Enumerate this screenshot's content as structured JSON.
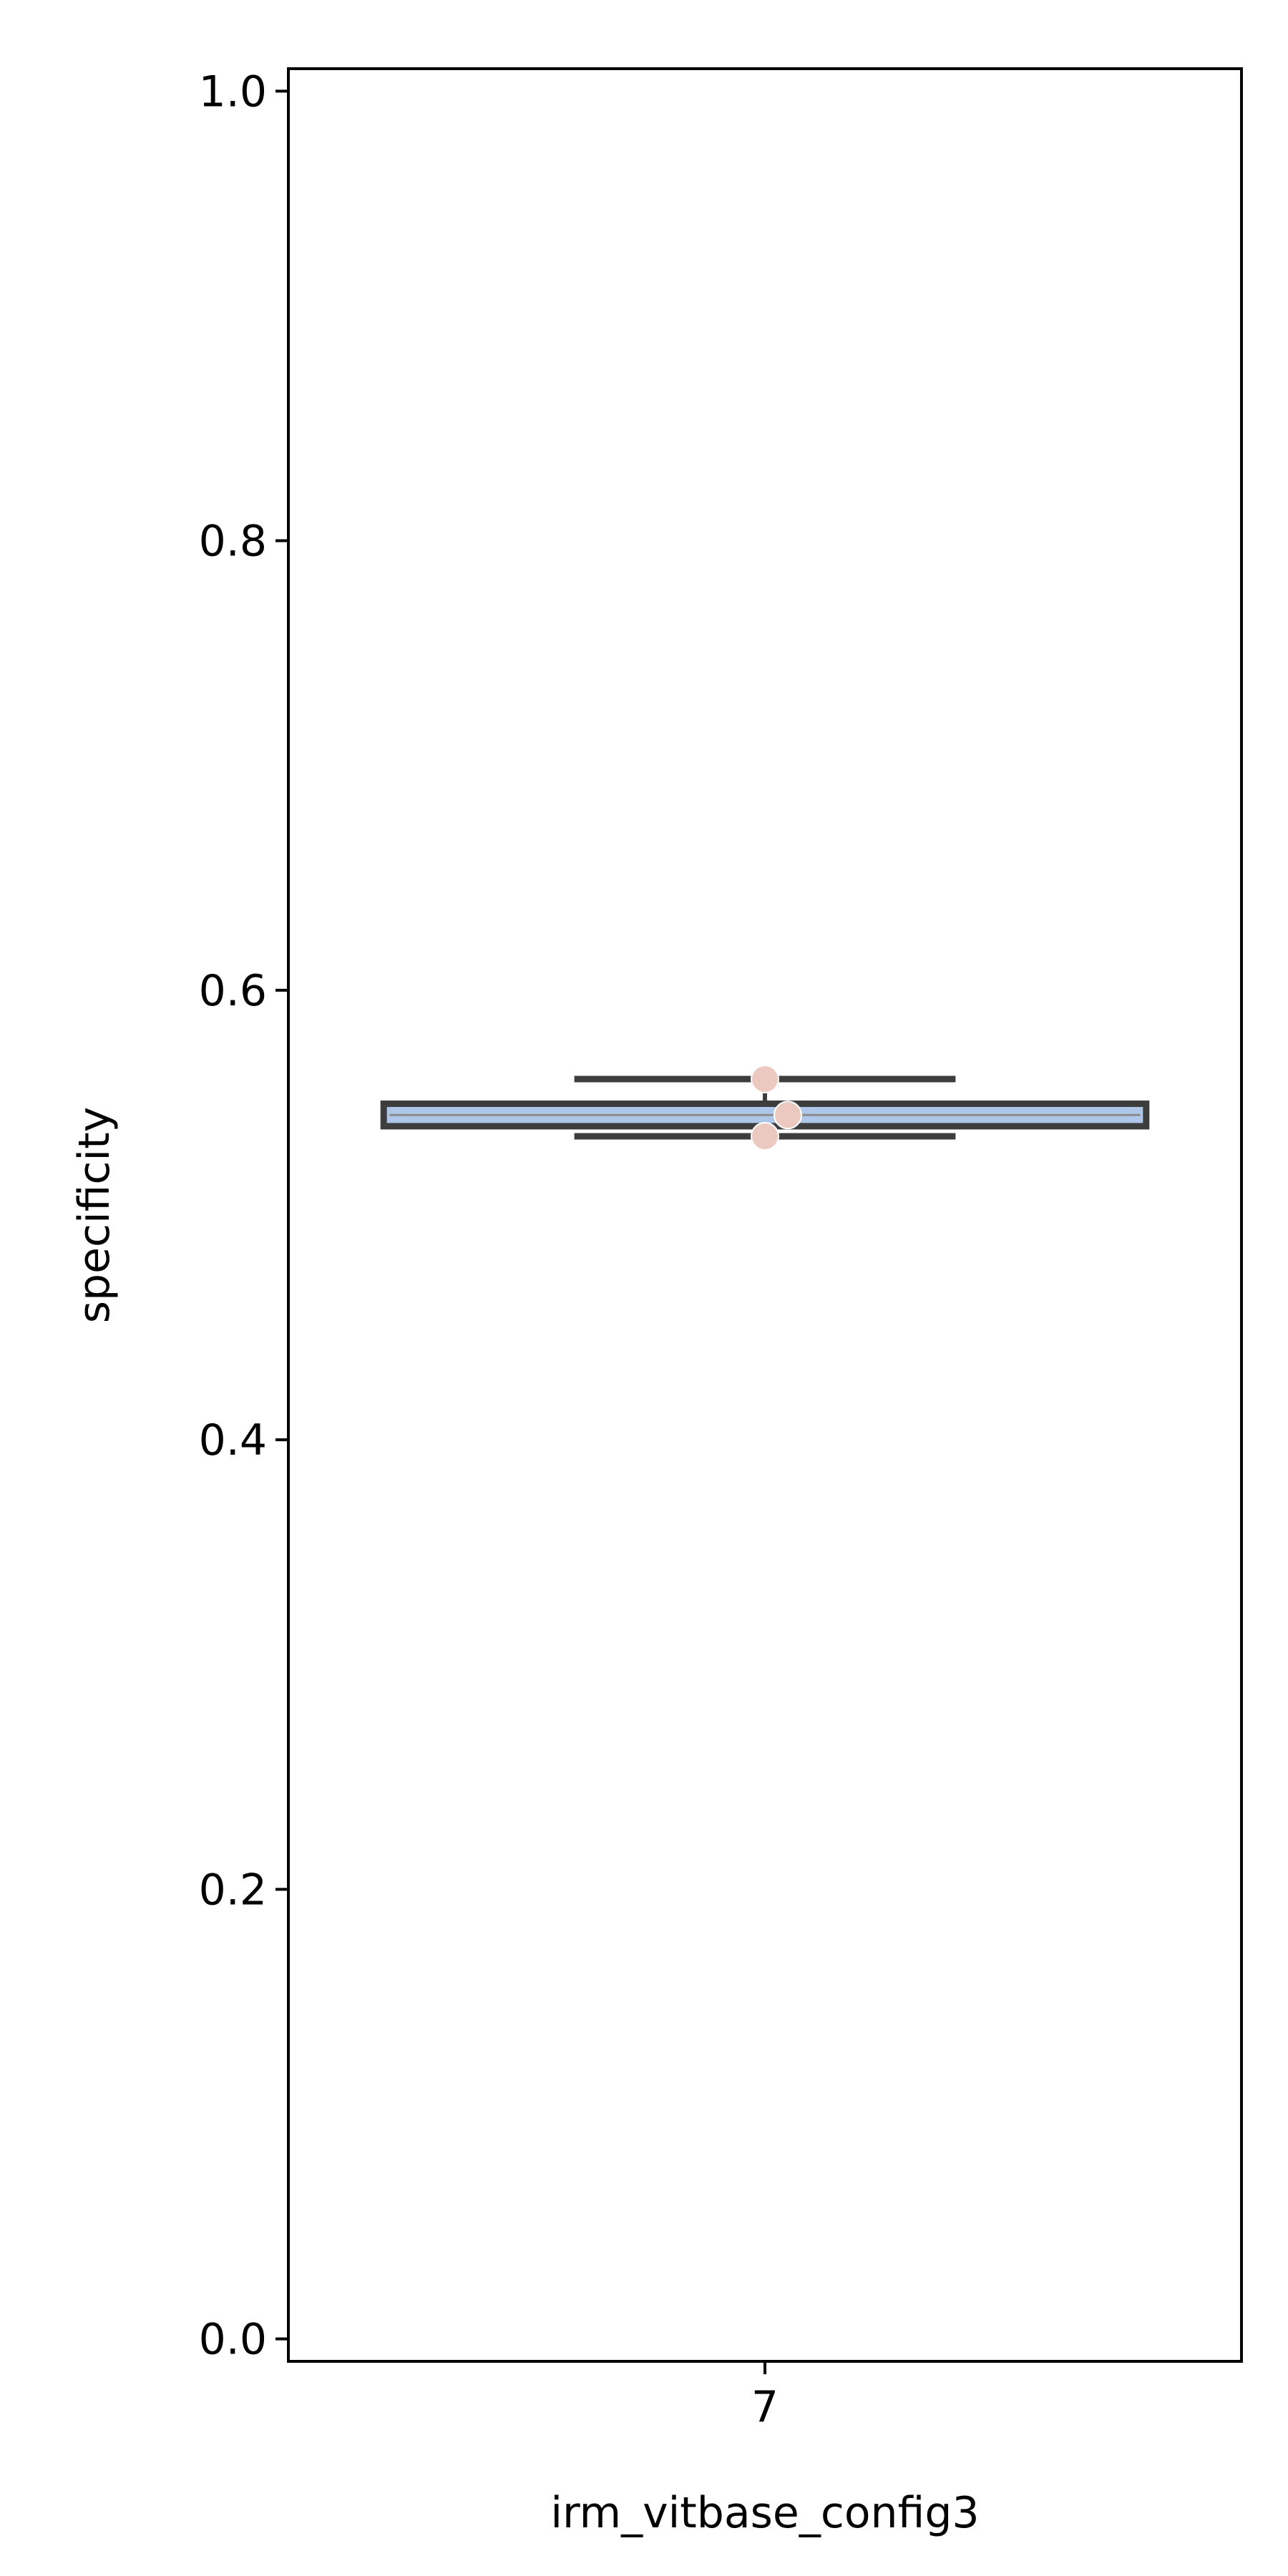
{
  "chart_data": {
    "type": "box",
    "categories": [
      "7"
    ],
    "xlabel": "irm_vitbase_config3",
    "ylabel": "specificity",
    "ylim": [
      -0.01,
      1.01
    ],
    "yticks": [
      0.0,
      0.2,
      0.4,
      0.6,
      0.8,
      1.0
    ],
    "ytick_labels": [
      "0.0",
      "0.2",
      "0.4",
      "0.6",
      "0.8",
      "1.0"
    ],
    "boxes": [
      {
        "category": "7",
        "whisker_low": 0.535,
        "q1": 0.5395,
        "median": 0.5445,
        "q3": 0.5495,
        "whisker_high": 0.5605,
        "mean": 0.5465
      }
    ],
    "points": [
      {
        "category": "7",
        "value": 0.5605
      },
      {
        "category": "7",
        "value": 0.5445
      },
      {
        "category": "7",
        "value": 0.535
      }
    ],
    "colors": {
      "box_fill": "#aec7e8",
      "box_edge": "#3d3d3d",
      "points": "#ecc9c0",
      "axes": "#000000"
    },
    "grid": false
  }
}
